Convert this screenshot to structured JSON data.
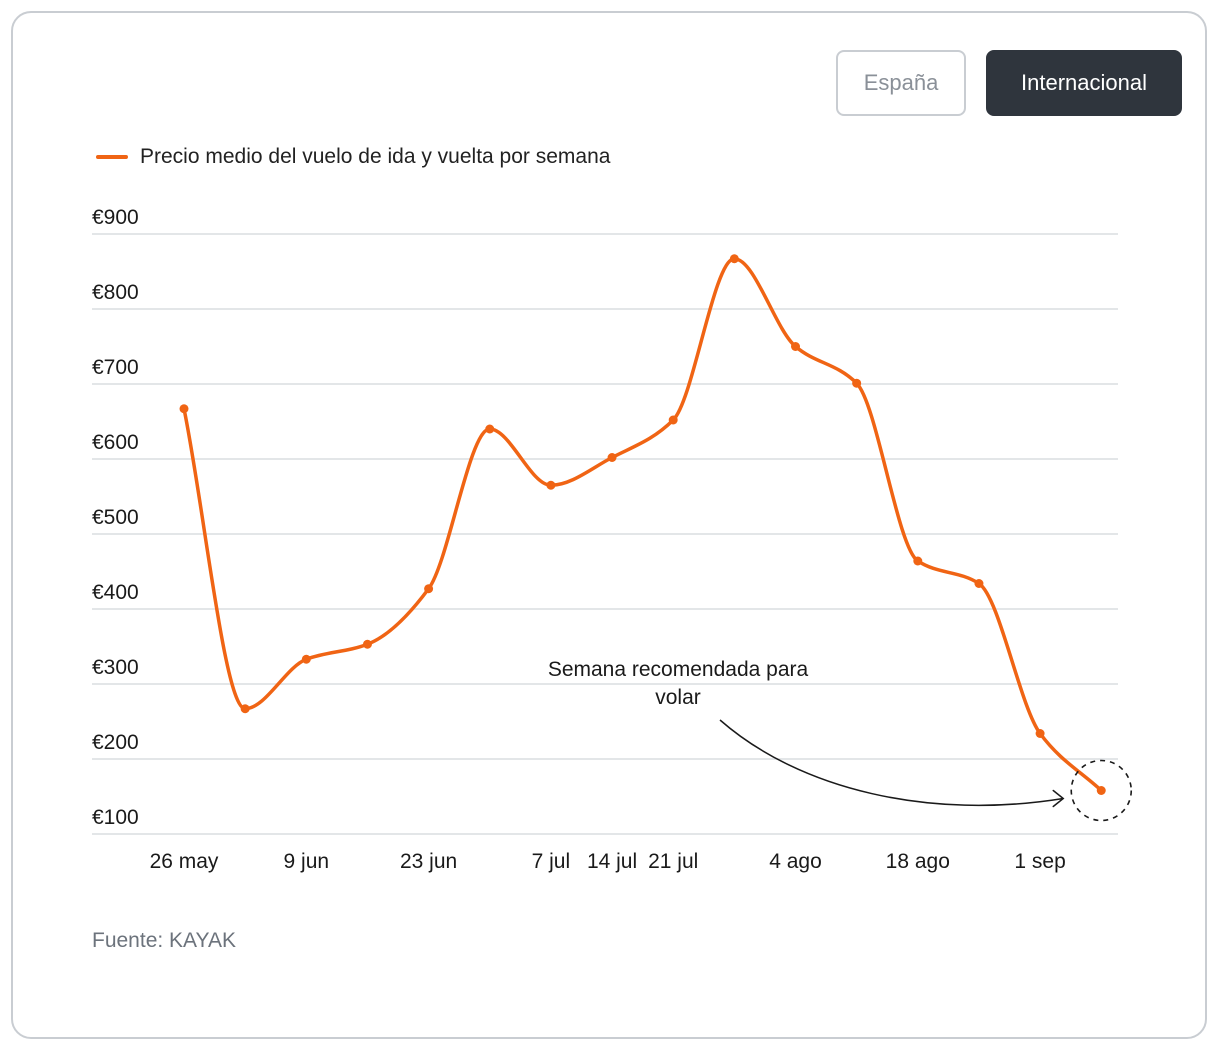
{
  "toggles": [
    {
      "label": "España",
      "active": false
    },
    {
      "label": "Internacional",
      "active": true
    }
  ],
  "source": "Fuente: KAYAK",
  "colors": {
    "line": "#f06414",
    "grid": "#dadde1",
    "active_toggle": "#2f353d"
  },
  "annotation": {
    "line1": "Semana recomendada para",
    "line2": "volar"
  },
  "chart_data": {
    "type": "line",
    "legend": "top-left",
    "grid": true,
    "ylim": [
      100,
      900
    ],
    "yticks": [
      900,
      800,
      700,
      600,
      500,
      400,
      300,
      200,
      100
    ],
    "ytick_labels": [
      "€900",
      "€800",
      "€700",
      "€600",
      "€500",
      "€400",
      "€300",
      "€200",
      "€100"
    ],
    "x": [
      "26 may",
      "2 jun",
      "9 jun",
      "16 jun",
      "23 jun",
      "30 jun",
      "7 jul",
      "14 jul",
      "21 jul",
      "28 jul",
      "4 ago",
      "11 ago",
      "18 ago",
      "25 ago",
      "1 sep",
      "8 sep"
    ],
    "xtick_labels": [
      "26 may",
      "9 jun",
      "23 jun",
      "7 jul",
      "14 jul",
      "21 jul",
      "4 ago",
      "18 ago",
      "1 sep"
    ],
    "series": [
      {
        "name": "Precio medio del vuelo de ida y vuelta por semana",
        "values": [
          667,
          267,
          333,
          353,
          427,
          640,
          565,
          602,
          652,
          867,
          750,
          701,
          464,
          434,
          234,
          158
        ]
      }
    ],
    "highlight_index": 15
  }
}
